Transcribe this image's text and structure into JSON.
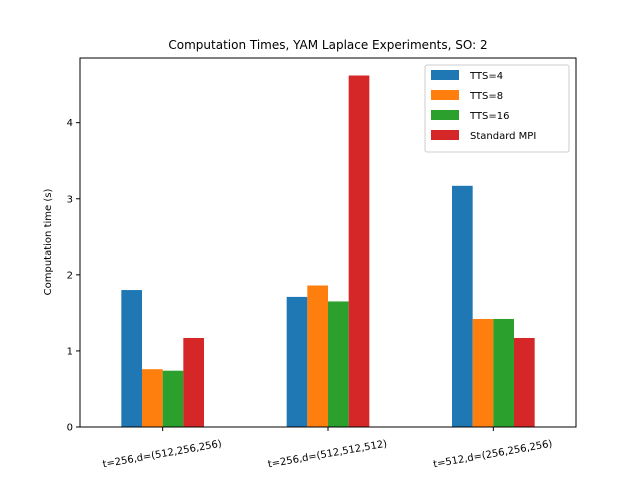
{
  "chart_data": {
    "type": "bar",
    "title": "Computation Times, YAM Laplace Experiments, SO: 2",
    "xlabel": "",
    "ylabel": "Computation time (s)",
    "categories": [
      "t=256,d=(512,256,256)",
      "t=256,d=(512,512,512)",
      "t=512,d=(256,256,256)"
    ],
    "series": [
      {
        "name": "TTS=4",
        "color": "#1f77b4",
        "values": [
          1.8,
          1.71,
          3.17
        ]
      },
      {
        "name": "TTS=8",
        "color": "#ff7f0e",
        "values": [
          0.76,
          1.86,
          1.42
        ]
      },
      {
        "name": "TTS=16",
        "color": "#2ca02c",
        "values": [
          0.74,
          1.65,
          1.42
        ]
      },
      {
        "name": "Standard MPI",
        "color": "#d62728",
        "values": [
          1.17,
          4.62,
          1.17
        ]
      }
    ],
    "ylim": [
      0,
      4.85
    ],
    "yticks": [
      0,
      1,
      2,
      3,
      4
    ],
    "legend_position": "top-right",
    "grid": false
  }
}
